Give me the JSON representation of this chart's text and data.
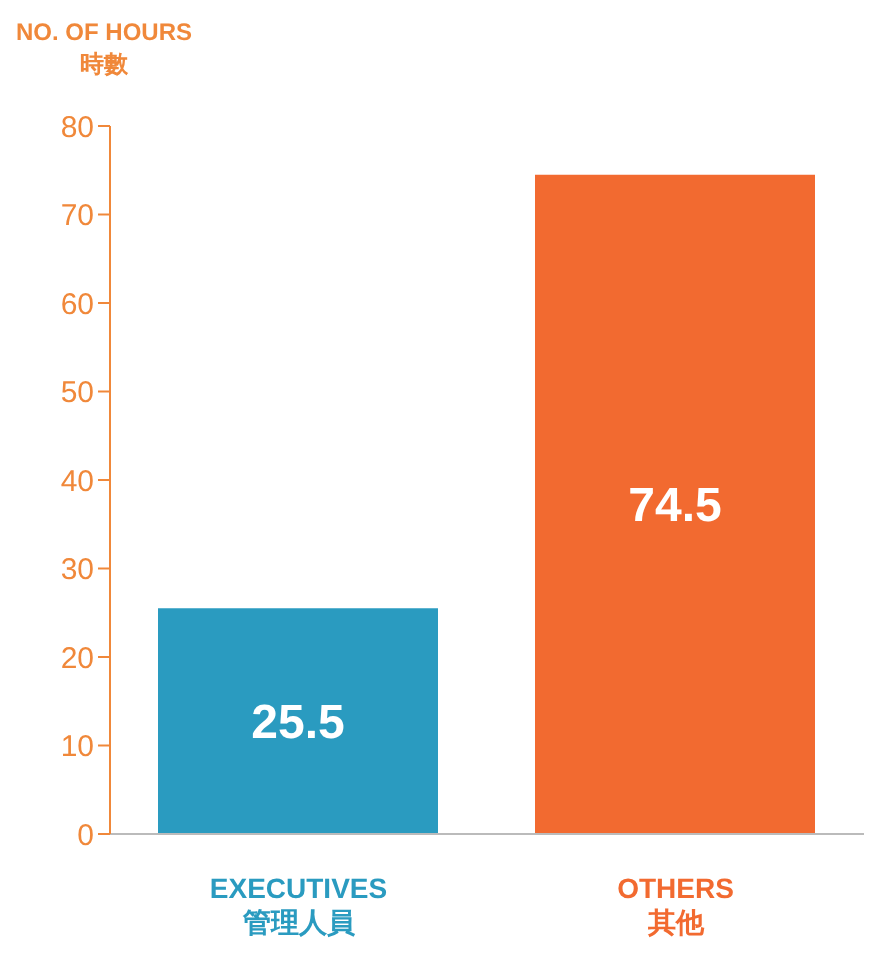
{
  "chart_data": {
    "type": "bar",
    "ylabel": "NO. OF HOURS\n時數",
    "categories": [
      "EXECUTIVES\n管理人員",
      "OTHERS\n其他"
    ],
    "values": [
      25.5,
      74.5
    ],
    "colors": [
      "#2a9bc0",
      "#f26a30"
    ],
    "ylim": [
      0,
      80
    ],
    "yticks": [
      0,
      10,
      20,
      30,
      40,
      50,
      60,
      70,
      80
    ],
    "data_labels": true
  }
}
